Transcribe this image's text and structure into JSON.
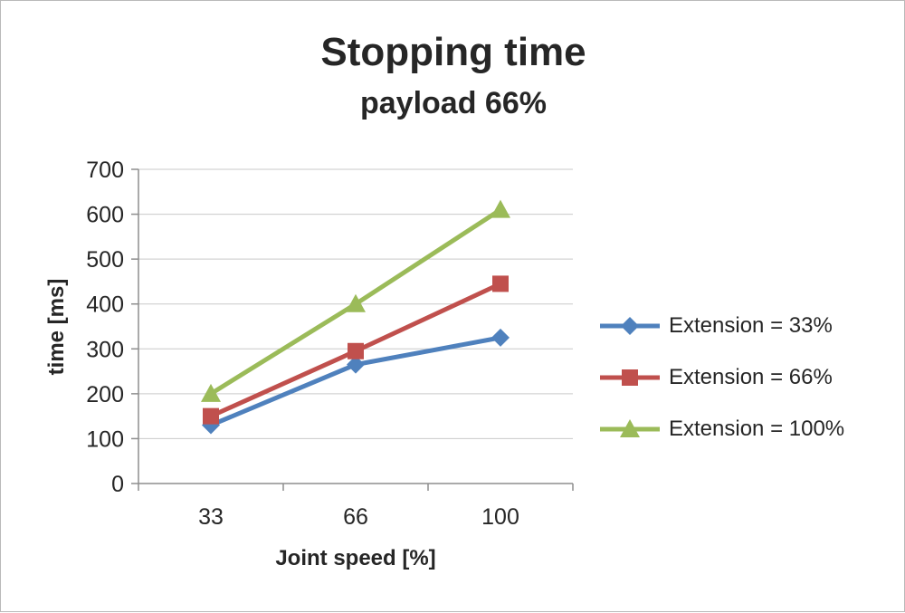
{
  "chart_data": {
    "type": "line",
    "title": "Stopping time",
    "subtitle": "payload 66%",
    "xlabel": "Joint speed [%]",
    "ylabel": "time [ms]",
    "categories": [
      "33",
      "66",
      "100"
    ],
    "ylim": [
      0,
      700
    ],
    "ytick": 100,
    "grid": true,
    "legend_position": "right",
    "series": [
      {
        "name": "Extension = 33%",
        "marker": "diamond",
        "color": "#4F81BD",
        "values": [
          130,
          265,
          325
        ]
      },
      {
        "name": "Extension = 66%",
        "marker": "square",
        "color": "#C0504D",
        "values": [
          150,
          295,
          445
        ]
      },
      {
        "name": "Extension = 100%",
        "marker": "triangle",
        "color": "#9BBB59",
        "values": [
          200,
          400,
          610
        ]
      }
    ]
  }
}
